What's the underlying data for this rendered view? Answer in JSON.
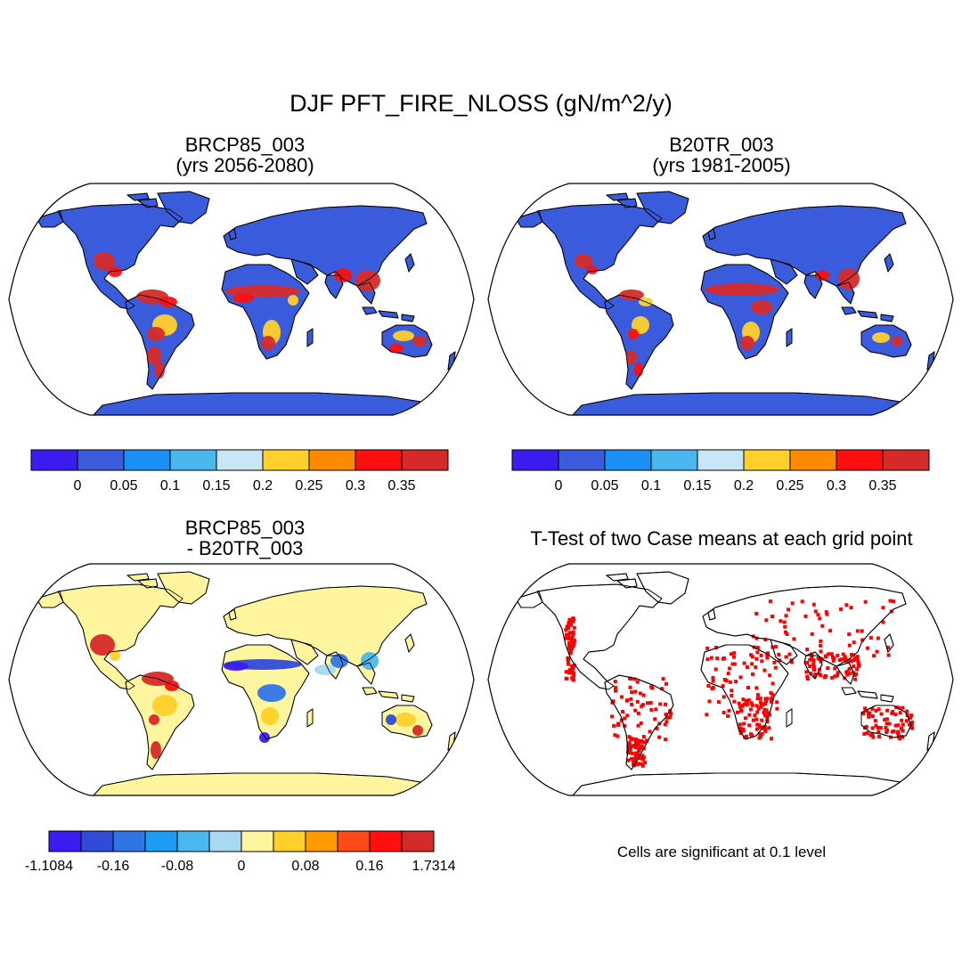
{
  "figure": {
    "title": "DJF PFT_FIRE_NLOSS (gN/m^2/y)"
  },
  "panels": [
    {
      "id": "top-left",
      "title_line1": "BRCP85_003",
      "title_line2": "(yrs 2056-2080)",
      "fill": "#3a5cdc",
      "field": "case"
    },
    {
      "id": "top-right",
      "title_line1": "B20TR_003",
      "title_line2": "(yrs 1981-2005)",
      "fill": "#3a5cdc",
      "field": "control"
    },
    {
      "id": "bottom-left",
      "title_line1": "BRCP85_003",
      "title_line2": "- B20TR_003",
      "fill": "#fff59e",
      "field": "difference"
    },
    {
      "id": "bottom-right",
      "title_line1": "T-Test of two Case means at each grid point",
      "title_line2": "",
      "fill": "#ffffff",
      "field": "significance",
      "note": "Cells are significant at 0.1 level"
    }
  ],
  "colorbars": {
    "absolute": {
      "colors": [
        "#3a1cf0",
        "#3a5cdc",
        "#1a8ff5",
        "#4ab7ee",
        "#c8e6f5",
        "#ffd02a",
        "#ff8a00",
        "#ff0f0f",
        "#d62a2a"
      ],
      "labels": [
        "0",
        "0.05",
        "0.1",
        "0.15",
        "0.2",
        "0.25",
        "0.3",
        "0.35"
      ]
    },
    "difference": {
      "colors": [
        "#3a1cf0",
        "#2f4bd8",
        "#3075e6",
        "#1c9cf2",
        "#4ab7ee",
        "#a8d8f2",
        "#fff59e",
        "#ffd02a",
        "#ff9a00",
        "#ff4a1a",
        "#ff0f0f",
        "#d62a2a"
      ],
      "labels": [
        "-1.1084",
        "-0.16",
        "-0.08",
        "0",
        "0.08",
        "0.16",
        "1.7314"
      ]
    }
  },
  "colors": {
    "land_case": "#3a5cdc",
    "land_diff": "#fff59e",
    "fire_high": "#d62a2a",
    "fire_mid": "#ff0f0f",
    "fire_warm": "#ffd02a",
    "significant": "#ff0000",
    "coast": "#000000"
  }
}
